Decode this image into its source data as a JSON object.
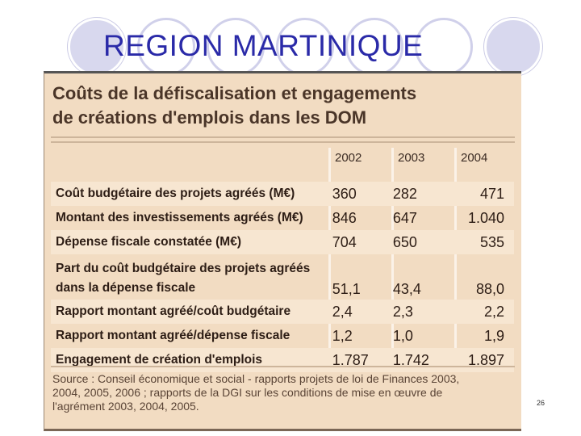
{
  "slide": {
    "title": "REGION MARTINIQUE",
    "page_number": "26"
  },
  "figure": {
    "heading_line1": "Coûts de la défiscalisation et engagements",
    "heading_line2": "de créations d'emplois dans les DOM",
    "columns": [
      "2002",
      "2003",
      "2004"
    ],
    "rows": [
      {
        "label": "Coût budgétaire des projets agréés (M€)",
        "values": [
          "360",
          "282",
          "471"
        ]
      },
      {
        "label": "Montant des investissements agréés (M€)",
        "values": [
          "846",
          "647",
          "1.040"
        ]
      },
      {
        "label": "Dépense fiscale constatée (M€)",
        "values": [
          "704",
          "650",
          "535"
        ]
      },
      {
        "label": "Part du coût budgétaire des projets agréés dans la dépense fiscale",
        "values": [
          "51,1",
          "43,4",
          "88,0"
        ]
      },
      {
        "label": "Rapport montant agréé/coût budgétaire",
        "values": [
          "2,4",
          "2,3",
          "2,2"
        ]
      },
      {
        "label": "Rapport montant agréé/dépense fiscale",
        "values": [
          "1,2",
          "1,0",
          "1,9"
        ]
      },
      {
        "label": "Engagement de création d'emplois",
        "values": [
          "1.787",
          "1.742",
          "1.897"
        ]
      }
    ],
    "source_line1": "Source : Conseil économique et social - rapports projets de loi de Finances 2003,",
    "source_line2": "2004, 2005, 2006 ; rapports de la DGI sur les conditions de mise en œuvre de",
    "source_line3": "l'agrément 2003, 2004, 2005."
  },
  "colors": {
    "title": "#2a2aa8",
    "panel_background": "#f2dcc2",
    "circle_fill": "#d8d8ee"
  }
}
